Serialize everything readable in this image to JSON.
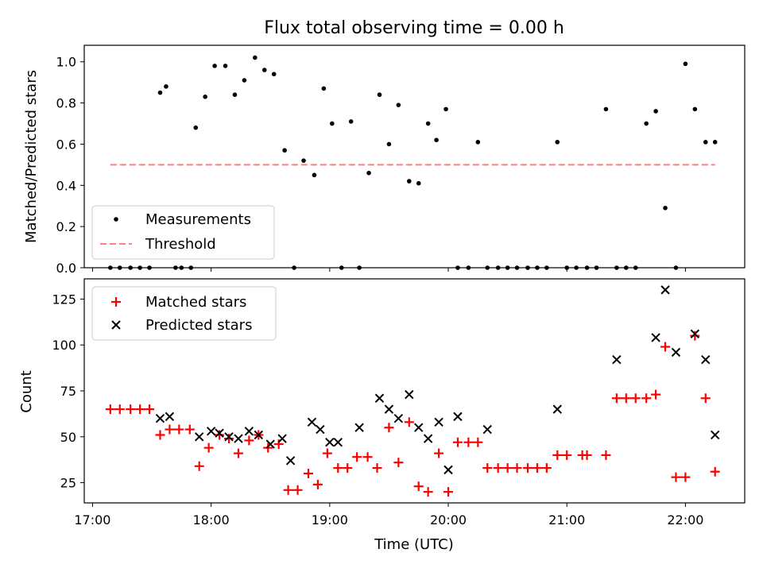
{
  "colors": {
    "measurement": "#000000",
    "threshold": "#ff7f7f",
    "matched": "#ff0000",
    "predicted": "#000000"
  },
  "chart_data": [
    {
      "type": "scatter",
      "title": "Flux total observing time = 0.00 h",
      "xlabel": "",
      "ylabel": "Matched/Predicted stars",
      "xlim": [
        16.93,
        22.5
      ],
      "ylim": [
        0,
        1.08
      ],
      "xticks": [
        17,
        18,
        19,
        20,
        21,
        22
      ],
      "xtick_labels": [
        "",
        "",
        "",
        "",
        "",
        ""
      ],
      "yticks": [
        0.0,
        0.2,
        0.4,
        0.6,
        0.8,
        1.0
      ],
      "ytick_labels": [
        "0.0",
        "0.2",
        "0.4",
        "0.6",
        "0.8",
        "1.0"
      ],
      "legend_position": "lower-left",
      "series": [
        {
          "name": "Measurements",
          "marker": "dot",
          "x": [
            17.15,
            17.23,
            17.32,
            17.4,
            17.48,
            17.57,
            17.62,
            17.7,
            17.75,
            17.83,
            17.87,
            17.95,
            18.03,
            18.12,
            18.2,
            18.28,
            18.37,
            18.45,
            18.53,
            18.62,
            18.7,
            18.78,
            18.87,
            18.95,
            19.02,
            19.1,
            19.18,
            19.25,
            19.33,
            19.42,
            19.5,
            19.58,
            19.67,
            19.75,
            19.83,
            19.9,
            19.98,
            20.08,
            20.17,
            20.25,
            20.33,
            20.42,
            20.5,
            20.58,
            20.67,
            20.75,
            20.83,
            20.92,
            21.0,
            21.08,
            21.17,
            21.25,
            21.33,
            21.42,
            21.5,
            21.58,
            21.67,
            21.75,
            21.83,
            21.92,
            22.0,
            22.08,
            22.17,
            22.25
          ],
          "y": [
            0,
            0,
            0,
            0,
            0,
            0.85,
            0.88,
            0,
            0,
            0,
            0.68,
            0.83,
            0.98,
            0.98,
            0.84,
            0.91,
            1.02,
            0.96,
            0.94,
            0.57,
            0,
            0.52,
            0.45,
            0.87,
            0.7,
            0,
            0.71,
            0,
            0.46,
            0.84,
            0.6,
            0.79,
            0.42,
            0.41,
            0.7,
            0.62,
            0.77,
            0,
            0,
            0.61,
            0,
            0,
            0,
            0,
            0,
            0,
            0,
            0.61,
            0,
            0,
            0,
            0,
            0.77,
            0,
            0,
            0,
            0.7,
            0.76,
            0.29,
            0,
            0.99,
            0.77,
            0.61,
            0.61
          ]
        },
        {
          "name": "Threshold",
          "type": "line",
          "style": "dashed",
          "x": [
            17.15,
            22.25
          ],
          "y": [
            0.5,
            0.5
          ]
        }
      ]
    },
    {
      "type": "scatter",
      "title": "",
      "xlabel": "Time (UTC)",
      "ylabel": "Count",
      "xlim": [
        16.93,
        22.5
      ],
      "ylim": [
        14,
        136
      ],
      "xticks": [
        17,
        18,
        19,
        20,
        21,
        22
      ],
      "xtick_labels": [
        "17:00",
        "18:00",
        "19:00",
        "20:00",
        "21:00",
        "22:00"
      ],
      "yticks": [
        25,
        50,
        75,
        100,
        125
      ],
      "ytick_labels": [
        "25",
        "50",
        "75",
        "100",
        "125"
      ],
      "legend_position": "upper-left",
      "series": [
        {
          "name": "Matched stars",
          "marker": "plus",
          "x": [
            17.15,
            17.23,
            17.32,
            17.4,
            17.48,
            17.57,
            17.65,
            17.73,
            17.82,
            17.9,
            17.98,
            18.07,
            18.15,
            18.23,
            18.32,
            18.4,
            18.48,
            18.57,
            18.65,
            18.73,
            18.82,
            18.9,
            18.98,
            19.07,
            19.15,
            19.23,
            19.32,
            19.4,
            19.5,
            19.58,
            19.67,
            19.75,
            19.83,
            19.92,
            20.0,
            20.08,
            20.17,
            20.25,
            20.33,
            20.42,
            20.5,
            20.58,
            20.67,
            20.75,
            20.83,
            20.92,
            21.0,
            21.13,
            21.17,
            21.33,
            21.42,
            21.5,
            21.58,
            21.67,
            21.75,
            21.83,
            21.92,
            22.0,
            22.08,
            22.17,
            22.25
          ],
          "y": [
            65,
            65,
            65,
            65,
            65,
            51,
            54,
            54,
            54,
            34,
            44,
            51,
            49,
            41,
            48,
            51,
            44,
            46,
            21,
            21,
            30,
            24,
            41,
            33,
            33,
            39,
            39,
            33,
            55,
            36,
            58,
            23,
            20,
            41,
            20,
            47,
            47,
            47,
            33,
            33,
            33,
            33,
            33,
            33,
            33,
            40,
            40,
            40,
            40,
            40,
            71,
            71,
            71,
            71,
            73,
            99,
            28,
            28,
            105,
            71,
            31
          ]
        },
        {
          "name": "Predicted stars",
          "marker": "x",
          "x": [
            17.57,
            17.65,
            17.9,
            18.0,
            18.07,
            18.15,
            18.23,
            18.32,
            18.4,
            18.5,
            18.6,
            18.67,
            18.85,
            18.92,
            19.0,
            19.07,
            19.25,
            19.42,
            19.5,
            19.58,
            19.67,
            19.75,
            19.83,
            19.92,
            20.0,
            20.08,
            20.33,
            20.92,
            21.42,
            21.75,
            21.83,
            21.92,
            22.08,
            22.17,
            22.25
          ],
          "y": [
            60,
            61,
            50,
            53,
            52,
            50,
            49,
            53,
            51,
            46,
            49,
            37,
            58,
            54,
            47,
            47,
            55,
            71,
            65,
            60,
            73,
            55,
            49,
            58,
            32,
            61,
            54,
            65,
            92,
            104,
            130,
            96,
            106,
            92,
            51
          ]
        }
      ]
    }
  ]
}
